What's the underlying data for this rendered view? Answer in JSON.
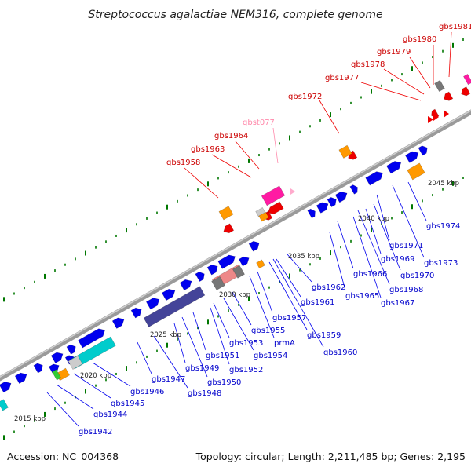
{
  "title": "Streptococcus agalactiae NEM316, complete genome",
  "footer": {
    "accession": "Accession: NC_004368",
    "summary": "Topology: circular; Length: 2,211,485 bp; Genes: 2,195"
  },
  "colors": {
    "forward_strand_gene": "#0000ee",
    "reverse_strand_gene": "#ee0000",
    "forward_label": "#0000cc",
    "reverse_label": "#cc0000",
    "trna_label": "#ff88aa",
    "orange_feature": "#ff9900",
    "pink_feature": "#ff1aa3",
    "cyan_feature": "#00cccc",
    "slate_feature": "#444499",
    "grey_feature": "#777777",
    "salmon_feature": "#ee8888",
    "green_feature": "#33cc33",
    "backbone": "#888888",
    "gc_tick": "#007700"
  },
  "scale_labels": [
    "2015 kbp",
    "2020 kbp",
    "2025 kbp",
    "2030 kbp",
    "2035 kbp",
    "2040 kbp",
    "2045 kbp"
  ],
  "forward_labels": [
    "gbs1942",
    "gbs1944",
    "gbs1945",
    "gbs1946",
    "gbs1947",
    "gbs1948",
    "gbs1949",
    "gbs1950",
    "gbs1951",
    "gbs1952",
    "gbs1953",
    "gbs1954",
    "gbs1955",
    "prmA",
    "gbs1957",
    "gbs1959",
    "gbs1960",
    "gbs1961",
    "gbs1962",
    "gbs1965",
    "gbs1966",
    "gbs1967",
    "gbs1968",
    "gbs1969",
    "gbs1970",
    "gbs1971",
    "gbs1973",
    "gbs1974"
  ],
  "reverse_labels": [
    "gbs1958",
    "gbs1963",
    "gbs1964",
    "gbs1972",
    "gbs1977",
    "gbs1978",
    "gbs1979",
    "gbs1980",
    "gbs1981"
  ],
  "trna_labels": [
    "gbst077"
  ]
}
